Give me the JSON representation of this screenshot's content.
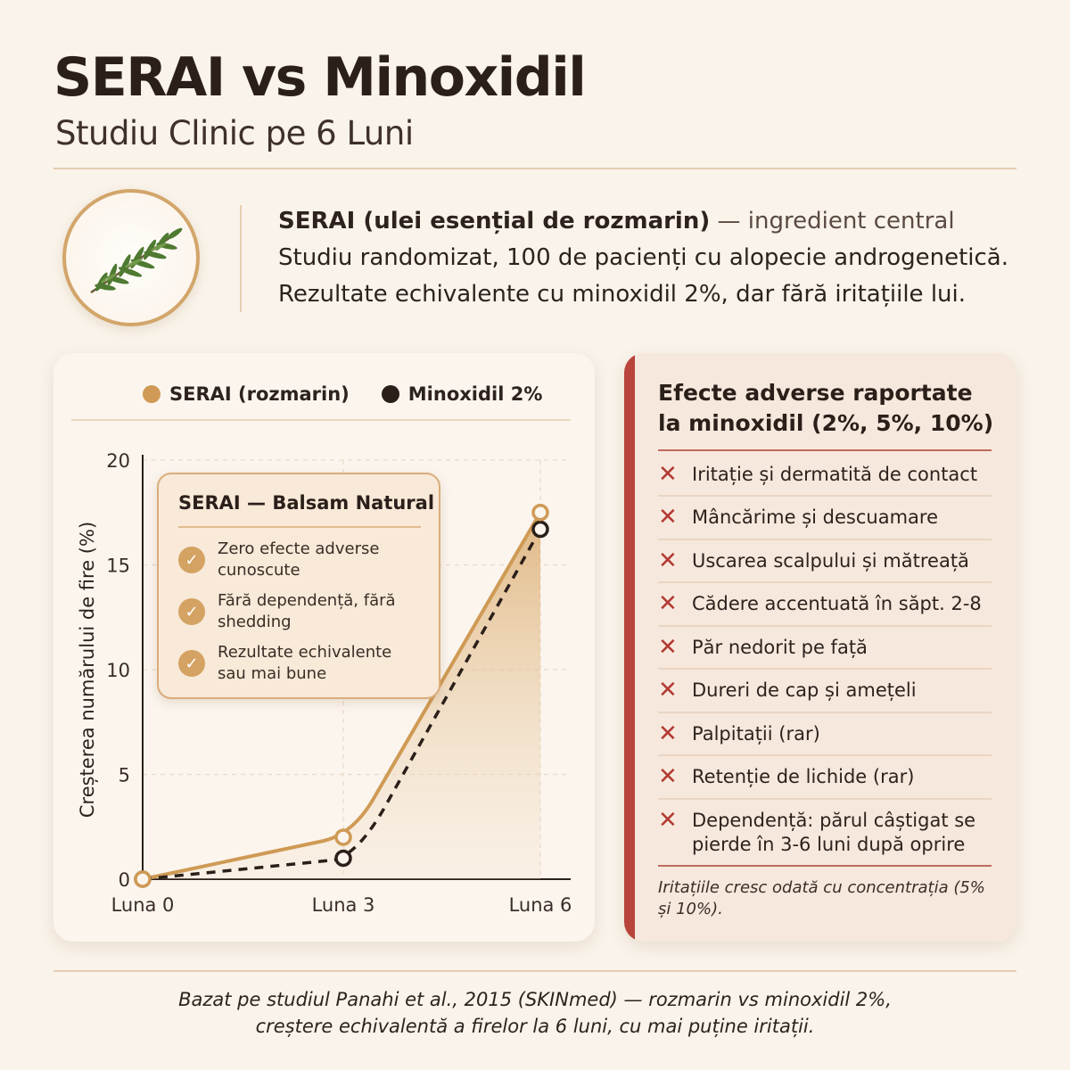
{
  "header": {
    "title": "SERAI vs Minoxidil",
    "subtitle": "Studiu Clinic pe 6 Luni"
  },
  "intro": {
    "emblem_icon": "rosemary-sprig-icon",
    "lead_bold": "SERAI (ulei esențial de rozmarin)",
    "lead_rest": " — ingredient central",
    "line2": "Studiu randomizat, 100 de pacienți cu alopecie androgenetică.",
    "line3": "Rezultate echivalente cu minoxidil 2%, dar fără iritațiile lui."
  },
  "chart_data": {
    "type": "line",
    "categories": [
      "Luna 0",
      "Luna 3",
      "Luna 6"
    ],
    "series": [
      {
        "name": "SERAI (rozmarin)",
        "values": [
          0,
          2,
          17.5
        ],
        "color": "#cf9a55",
        "style": "solid",
        "fill": "area"
      },
      {
        "name": "Minoxidil 2%",
        "values": [
          0,
          1,
          16.7
        ],
        "color": "#2b1f1a",
        "style": "dashed"
      }
    ],
    "ylabel": "Creșterea numărului de fire (%)",
    "xlabel": "",
    "ylim": [
      0,
      20
    ],
    "yticks": [
      "0",
      "5",
      "10",
      "15",
      "20"
    ],
    "grid": "dashed",
    "legend": "top"
  },
  "callout": {
    "title": "SERAI — Balsam Natural",
    "items": [
      {
        "icon": "check-icon",
        "text": "Zero efecte adverse cunoscute"
      },
      {
        "icon": "check-icon",
        "text": "Fără dependență, fără shedding"
      },
      {
        "icon": "check-icon",
        "text": "Rezultate echivalente sau mai bune"
      }
    ]
  },
  "adverse": {
    "title": "Efecte adverse raportate la minoxidil (2%, 5%, 10%)",
    "icon": "cross-icon",
    "items": [
      "Iritație și dermatită de contact",
      "Mâncărime și descuamare",
      "Uscarea scalpului și mătreață",
      "Cădere accentuată în săpt. 2-8",
      "Păr nedorit pe față",
      "Dureri de cap și amețeli",
      "Palpitații (rar)",
      "Retenție de lichide (rar)",
      "Dependență: părul câștigat se pierde în 3-6 luni după oprire"
    ],
    "note": "Iritațiile cresc odată cu concentrația (5% și 10%)."
  },
  "footer": {
    "line1": "Bazat pe studiul Panahi et al., 2015 (SKINmed) — rozmarin vs minoxidil 2%,",
    "line2": "creștere echivalentă a firelor la 6 luni, cu mai puține iritații."
  },
  "colors": {
    "background": "#f9f3ea",
    "accent_gold": "#cf9a55",
    "accent_red": "#b8443b",
    "text_dark": "#2b1f1a"
  }
}
